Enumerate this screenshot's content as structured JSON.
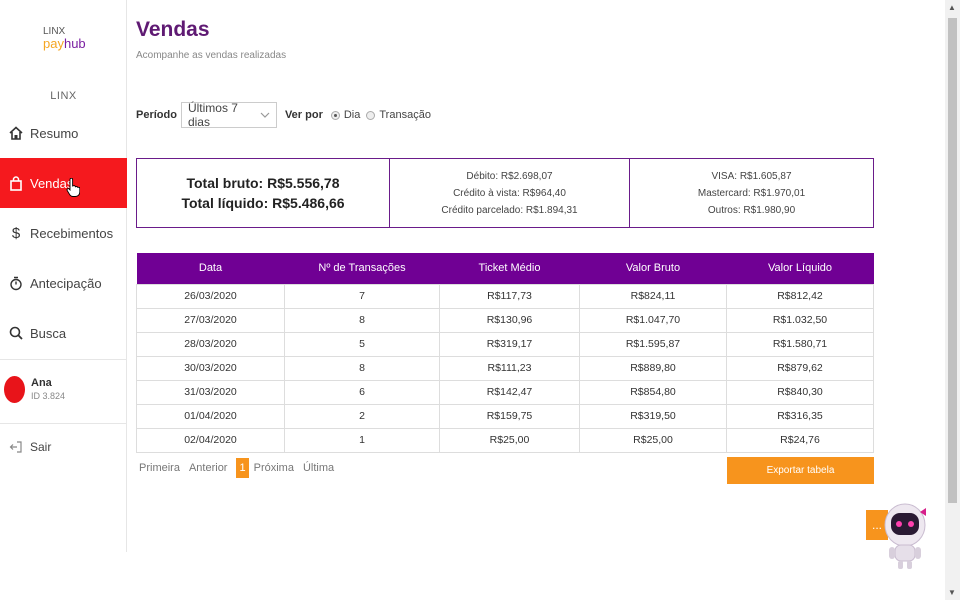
{
  "brand": {
    "line1": "LINX",
    "line2a": "pay",
    "line2b": "hub"
  },
  "sidebar": {
    "company": "LINX",
    "items": [
      {
        "label": "Resumo",
        "icon": "home-icon"
      },
      {
        "label": "Vendas",
        "icon": "bag-icon"
      },
      {
        "label": "Recebimentos",
        "icon": "dollar-icon"
      },
      {
        "label": "Antecipação",
        "icon": "stopwatch-icon"
      },
      {
        "label": "Busca",
        "icon": "search-icon"
      }
    ],
    "active_index": 1,
    "user": {
      "name": "Ana",
      "id": "ID 3.824"
    },
    "logout": "Sair"
  },
  "page": {
    "title": "Vendas",
    "subtitle": "Acompanhe as vendas realizadas"
  },
  "filters": {
    "period_label": "Período",
    "period_value": "Últimos 7 dias",
    "view_label": "Ver por",
    "options": [
      "Dia",
      "Transação"
    ],
    "selected": "Dia"
  },
  "summary": {
    "total_bruto": "Total bruto: R$5.556,78",
    "total_liquido": "Total líquido: R$5.486,66",
    "debito": "Débito: R$2.698,07",
    "credito_vista": "Crédito à vista: R$964,40",
    "credito_parcelado": "Crédito parcelado: R$1.894,31",
    "visa": "VISA: R$1.605,87",
    "mastercard": "Mastercard: R$1.970,01",
    "outros": "Outros: R$1.980,90"
  },
  "table": {
    "headers": [
      "Data",
      "Nº de Transações",
      "Ticket Médio",
      "Valor Bruto",
      "Valor Líquido"
    ],
    "rows": [
      [
        "26/03/2020",
        "7",
        "R$117,73",
        "R$824,11",
        "R$812,42"
      ],
      [
        "27/03/2020",
        "8",
        "R$130,96",
        "R$1.047,70",
        "R$1.032,50"
      ],
      [
        "28/03/2020",
        "5",
        "R$319,17",
        "R$1.595,87",
        "R$1.580,71"
      ],
      [
        "30/03/2020",
        "8",
        "R$111,23",
        "R$889,80",
        "R$879,62"
      ],
      [
        "31/03/2020",
        "6",
        "R$142,47",
        "R$854,80",
        "R$840,30"
      ],
      [
        "01/04/2020",
        "2",
        "R$159,75",
        "R$319,50",
        "R$316,35"
      ],
      [
        "02/04/2020",
        "1",
        "R$25,00",
        "R$25,00",
        "R$24,76"
      ]
    ]
  },
  "pagination": {
    "first": "Primeira",
    "prev": "Anterior",
    "current": "1",
    "next": "Próxima",
    "last": "Última"
  },
  "export_label": "Exportar tabela",
  "chat_label": "...",
  "colors": {
    "primary": "#700094",
    "accent": "#f7941d",
    "active": "#f5191e"
  }
}
